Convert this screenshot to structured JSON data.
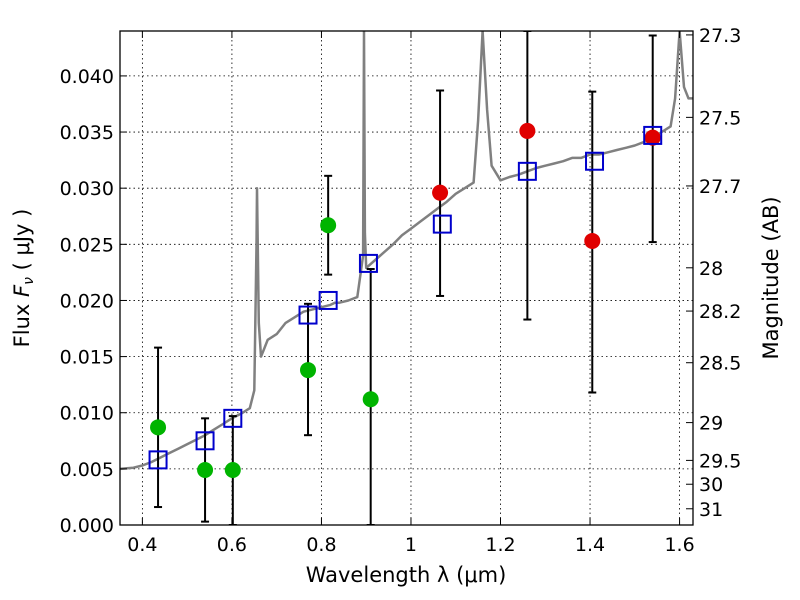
{
  "chart_data": {
    "type": "scatter",
    "xlabel": "Wavelength  λ (μm)",
    "ylabel": "Flux  F_ν  ( μJy )",
    "ylabel_parts": {
      "prefix": "Flux  ",
      "symbol": "F",
      "subscript": "ν",
      "units": "  ( μJy )"
    },
    "y2label": "Magnitude (AB)",
    "xlim": [
      0.35,
      1.63
    ],
    "ylim": [
      0.0,
      0.044
    ],
    "grid": true,
    "x_ticks": [
      0.4,
      0.6,
      0.8,
      1.0,
      1.2,
      1.4,
      1.6
    ],
    "x_tick_labels": [
      "0.4",
      "0.6",
      "0.8",
      "1",
      "1.2",
      "1.4",
      "1.6"
    ],
    "y_ticks": [
      0.0,
      0.005,
      0.01,
      0.015,
      0.02,
      0.025,
      0.03,
      0.035,
      0.04
    ],
    "y_tick_labels": [
      "0.000",
      "0.005",
      "0.010",
      "0.015",
      "0.020",
      "0.025",
      "0.030",
      "0.035",
      "0.040"
    ],
    "mag_ticks": [
      27.3,
      27.5,
      27.7,
      28,
      28.2,
      28.5,
      29,
      29.5,
      30,
      31
    ],
    "mag_tick_labels": [
      "27.3",
      "27.5",
      "27.7",
      "28",
      "28.2",
      "28.5",
      "29",
      "29.5",
      "30",
      "31"
    ],
    "colors": {
      "spectrum": "#808080",
      "model": "#0000cc",
      "detected": "#e00000",
      "upper": "#00b400",
      "errorbar": "#000000"
    },
    "series": [
      {
        "name": "model_photometry",
        "marker": "square",
        "points": [
          {
            "x": 0.435,
            "y": 0.0058
          },
          {
            "x": 0.54,
            "y": 0.0075
          },
          {
            "x": 0.602,
            "y": 0.0095
          },
          {
            "x": 0.77,
            "y": 0.0187
          },
          {
            "x": 0.815,
            "y": 0.02
          },
          {
            "x": 0.905,
            "y": 0.0233
          },
          {
            "x": 1.07,
            "y": 0.0268
          },
          {
            "x": 1.26,
            "y": 0.0315
          },
          {
            "x": 1.41,
            "y": 0.0324
          },
          {
            "x": 1.54,
            "y": 0.0347
          }
        ]
      },
      {
        "name": "observed_flux",
        "marker": "circle",
        "points": [
          {
            "x": 0.435,
            "y": 0.0087,
            "yerr_low": 0.0016,
            "yerr_high": 0.0158,
            "color": "upper"
          },
          {
            "x": 0.54,
            "y": 0.0049,
            "yerr_low": 0.0003,
            "yerr_high": 0.0095,
            "color": "upper"
          },
          {
            "x": 0.602,
            "y": 0.0049,
            "yerr_low": 0.0,
            "yerr_high": 0.0097,
            "color": "upper"
          },
          {
            "x": 0.77,
            "y": 0.0138,
            "yerr_low": 0.008,
            "yerr_high": 0.0197,
            "color": "upper"
          },
          {
            "x": 0.815,
            "y": 0.0267,
            "yerr_low": 0.0223,
            "yerr_high": 0.0311,
            "color": "upper"
          },
          {
            "x": 0.91,
            "y": 0.0112,
            "yerr_low": 0.0,
            "yerr_high": 0.0228,
            "color": "upper"
          },
          {
            "x": 1.065,
            "y": 0.0296,
            "yerr_low": 0.0204,
            "yerr_high": 0.0387,
            "color": "detected"
          },
          {
            "x": 1.26,
            "y": 0.0351,
            "yerr_low": 0.0183,
            "yerr_high": 0.044,
            "color": "detected"
          },
          {
            "x": 1.405,
            "y": 0.0253,
            "yerr_low": 0.0118,
            "yerr_high": 0.0386,
            "color": "detected"
          },
          {
            "x": 1.54,
            "y": 0.0345,
            "yerr_low": 0.0252,
            "yerr_high": 0.0436,
            "color": "detected"
          }
        ]
      }
    ],
    "spectrum": {
      "x": [
        0.35,
        0.38,
        0.4,
        0.42,
        0.44,
        0.46,
        0.48,
        0.5,
        0.52,
        0.54,
        0.56,
        0.58,
        0.6,
        0.62,
        0.64,
        0.65,
        0.655,
        0.656,
        0.66,
        0.665,
        0.67,
        0.68,
        0.7,
        0.72,
        0.74,
        0.76,
        0.78,
        0.8,
        0.82,
        0.83,
        0.84,
        0.86,
        0.88,
        0.893,
        0.895,
        0.897,
        0.9,
        0.92,
        0.94,
        0.96,
        0.98,
        1.0,
        1.02,
        1.04,
        1.06,
        1.08,
        1.1,
        1.12,
        1.14,
        1.15,
        1.16,
        1.17,
        1.18,
        1.2,
        1.22,
        1.24,
        1.26,
        1.28,
        1.3,
        1.32,
        1.34,
        1.36,
        1.38,
        1.4,
        1.42,
        1.44,
        1.46,
        1.48,
        1.5,
        1.52,
        1.54,
        1.56,
        1.58,
        1.59,
        1.6,
        1.61,
        1.62,
        1.63
      ],
      "y": [
        0.005,
        0.0051,
        0.0053,
        0.0056,
        0.006,
        0.0064,
        0.0068,
        0.0072,
        0.0076,
        0.008,
        0.0085,
        0.009,
        0.0095,
        0.0099,
        0.0104,
        0.012,
        0.025,
        0.03,
        0.018,
        0.015,
        0.0155,
        0.0165,
        0.017,
        0.018,
        0.0185,
        0.019,
        0.0192,
        0.0194,
        0.0196,
        0.0198,
        0.0198,
        0.02,
        0.0203,
        0.024,
        0.044,
        0.026,
        0.0229,
        0.0236,
        0.0243,
        0.025,
        0.0258,
        0.0264,
        0.027,
        0.0276,
        0.0282,
        0.0288,
        0.0295,
        0.03,
        0.0305,
        0.036,
        0.044,
        0.037,
        0.032,
        0.0307,
        0.031,
        0.0312,
        0.0315,
        0.0318,
        0.032,
        0.0322,
        0.0324,
        0.0327,
        0.0327,
        0.033,
        0.033,
        0.0332,
        0.0334,
        0.0336,
        0.0338,
        0.0341,
        0.0345,
        0.035,
        0.0355,
        0.038,
        0.044,
        0.039,
        0.038,
        0.038
      ]
    }
  }
}
